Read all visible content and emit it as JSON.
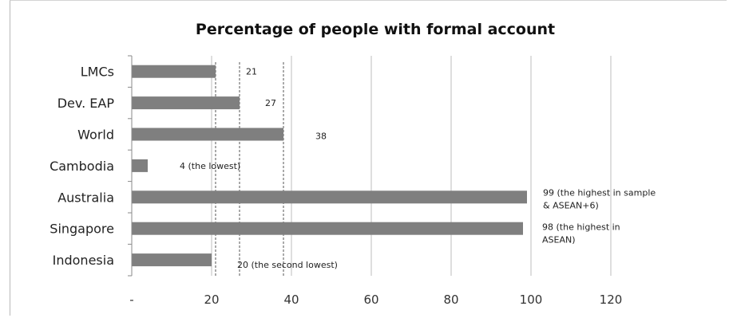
{
  "chart_data": {
    "type": "bar",
    "orientation": "horizontal",
    "title": "Percentage of people with formal account",
    "xlabel": "",
    "ylabel": "",
    "categories": [
      "LMCs",
      "Dev. EAP",
      "World",
      "Cambodia",
      "Australia",
      "Singapore",
      "Indonesia"
    ],
    "values": [
      21,
      27,
      38,
      4,
      99,
      98,
      20
    ],
    "data_labels": [
      [
        "21"
      ],
      [
        "27"
      ],
      [
        "38"
      ],
      [
        "4 (the lowest)"
      ],
      [
        "99 (the highest in sample",
        "& ASEAN+6)"
      ],
      [
        "98 (the highest in",
        "ASEAN)"
      ],
      [
        "20 (the second lowest)"
      ]
    ],
    "reference_lines": [
      21,
      27,
      38
    ],
    "x_ticks": [
      "-",
      "20",
      "40",
      "60",
      "80",
      "100",
      "120"
    ],
    "xlim": [
      0,
      120
    ],
    "grid": true,
    "legend": "none",
    "colors": {
      "bar": "#7f7f7f",
      "grid": "#bdbdbd",
      "reference": "#555555"
    }
  }
}
